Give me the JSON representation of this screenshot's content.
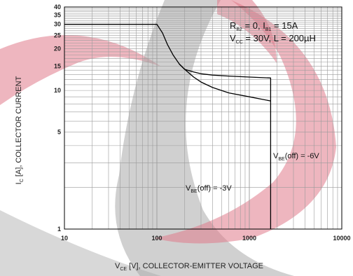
{
  "chart_data": {
    "type": "line",
    "xlabel": {
      "main": "V",
      "sub": "CE",
      "rest": " [V], COLLECTOR-EMITTER VOLTAGE"
    },
    "ylabel": {
      "main": "I",
      "sub": "C",
      "rest": " [A], COLLECTOR CURRENT"
    },
    "x_scale": "log",
    "y_scale": "log",
    "xlim": [
      10,
      10000
    ],
    "ylim": [
      1,
      40
    ],
    "x_ticks": [
      {
        "value": 10,
        "label": "10"
      },
      {
        "value": 100,
        "label": "100"
      },
      {
        "value": 1000,
        "label": "1000"
      },
      {
        "value": 10000,
        "label": "10000"
      }
    ],
    "y_ticks": [
      {
        "value": 1,
        "label": "1"
      },
      {
        "value": 5,
        "label": "5"
      },
      {
        "value": 10,
        "label": "10"
      },
      {
        "value": 15,
        "label": "15"
      },
      {
        "value": 20,
        "label": "20"
      },
      {
        "value": 25,
        "label": "25"
      },
      {
        "value": 30,
        "label": "30"
      },
      {
        "value": 35,
        "label": "35"
      },
      {
        "value": 40,
        "label": "40"
      }
    ],
    "grid": true,
    "series": [
      {
        "name": "VBE(off) = -6V",
        "x": [
          10,
          100,
          115,
          130,
          150,
          175,
          200,
          250,
          300,
          400,
          600,
          1000,
          1700,
          1700
        ],
        "y": [
          30,
          30,
          26,
          21.5,
          18,
          15.5,
          14.2,
          13.6,
          13.2,
          12.9,
          12.7,
          12.5,
          12.3,
          1
        ]
      },
      {
        "name": "VBE(off) = -3V",
        "x": [
          175,
          200,
          250,
          300,
          400,
          600,
          1000,
          1700
        ],
        "y": [
          15.5,
          14.2,
          12.5,
          11.5,
          10.5,
          9.6,
          9.0,
          8.4
        ]
      }
    ],
    "annotations": {
      "conditions_line1": {
        "a": "R",
        "a_sub": "B2",
        "b": " = 0, I",
        "b_sub": "B1",
        "c": " = 15A"
      },
      "conditions_line2": {
        "a": "V",
        "a_sub": "CC",
        "b": " = 30V, L = 200µH"
      },
      "curve_6v": {
        "main": "V",
        "sub": "BE",
        "rest": "(off) = -6V"
      },
      "curve_3v": {
        "main": "V",
        "sub": "BE",
        "rest": "(off) = -3V"
      }
    },
    "colors": {
      "line": "#000000",
      "grid": "#9a9a9a",
      "watermark_red": "#e07a8b",
      "watermark_gray": "#a9a9a9"
    }
  }
}
